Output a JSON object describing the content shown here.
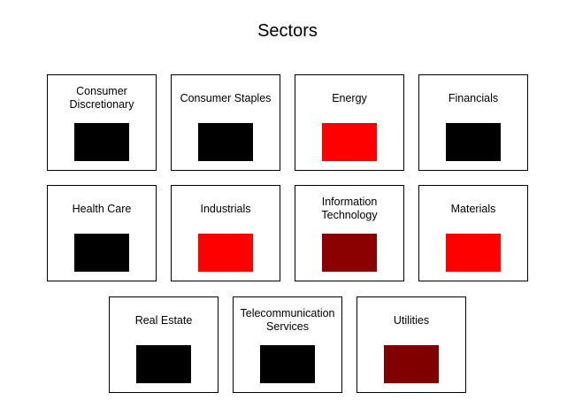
{
  "page": {
    "title": "Sectors"
  },
  "rows": [
    [
      {
        "id": "consumer-discretionary",
        "label": "Consumer Discretionary",
        "color": "#000000"
      },
      {
        "id": "consumer-staples",
        "label": "Consumer Staples",
        "color": "#000000"
      },
      {
        "id": "energy",
        "label": "Energy",
        "color": "#ff0000"
      },
      {
        "id": "financials",
        "label": "Financials",
        "color": "#000000"
      }
    ],
    [
      {
        "id": "health-care",
        "label": "Health Care",
        "color": "#000000"
      },
      {
        "id": "industrials",
        "label": "Industrials",
        "color": "#ff0000"
      },
      {
        "id": "information-technology",
        "label": "Information Technology",
        "color": "#8b0000"
      },
      {
        "id": "materials",
        "label": "Materials",
        "color": "#ff0000"
      }
    ],
    [
      {
        "id": "real-estate",
        "label": "Real Estate",
        "color": "#000000"
      },
      {
        "id": "telecommunication-services",
        "label": "Telecommunication Services",
        "color": "#000000"
      },
      {
        "id": "utilities",
        "label": "Utilities",
        "color": "#800000"
      }
    ]
  ]
}
